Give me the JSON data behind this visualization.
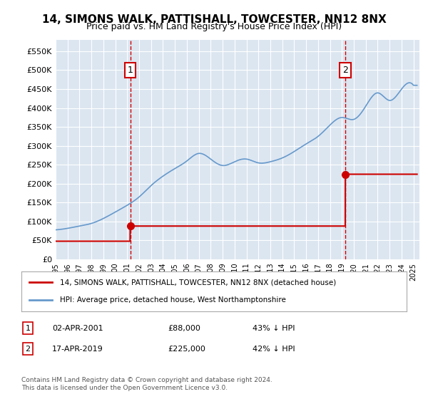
{
  "title": "14, SIMONS WALK, PATTISHALL, TOWCESTER, NN12 8NX",
  "subtitle": "Price paid vs. HM Land Registry's House Price Index (HPI)",
  "ylabel_ticks": [
    "£0",
    "£50K",
    "£100K",
    "£150K",
    "£200K",
    "£250K",
    "£300K",
    "£350K",
    "£400K",
    "£450K",
    "£500K",
    "£550K"
  ],
  "ytick_values": [
    0,
    50000,
    100000,
    150000,
    200000,
    250000,
    300000,
    350000,
    400000,
    450000,
    500000,
    550000
  ],
  "ylim": [
    0,
    580000
  ],
  "xlim_start": 1995.0,
  "xlim_end": 2025.5,
  "purchase1": {
    "date_num": 2001.25,
    "price": 88000,
    "label": "1"
  },
  "purchase2": {
    "date_num": 2019.29,
    "price": 225000,
    "label": "2"
  },
  "legend_line1": "14, SIMONS WALK, PATTISHALL, TOWCESTER, NN12 8NX (detached house)",
  "legend_line2": "HPI: Average price, detached house, West Northamptonshire",
  "table_row1": "1    02-APR-2001              £88,000        43% ↓ HPI",
  "table_row2": "2    17-APR-2019              £225,000      42% ↓ HPI",
  "footer": "Contains HM Land Registry data © Crown copyright and database right 2024.\nThis data is licensed under the Open Government Licence v3.0.",
  "bg_color": "#dce6f1",
  "plot_bg_color": "#dce6f1",
  "hpi_color": "#6699cc",
  "price_color": "#cc0000",
  "vline_color": "#cc0000",
  "box_color": "#cc0000",
  "xtick_years": [
    1995,
    1996,
    1997,
    1998,
    1999,
    2000,
    2001,
    2002,
    2003,
    2004,
    2005,
    2006,
    2007,
    2008,
    2009,
    2010,
    2011,
    2012,
    2013,
    2014,
    2015,
    2016,
    2017,
    2018,
    2019,
    2020,
    2021,
    2022,
    2023,
    2024,
    2025
  ]
}
